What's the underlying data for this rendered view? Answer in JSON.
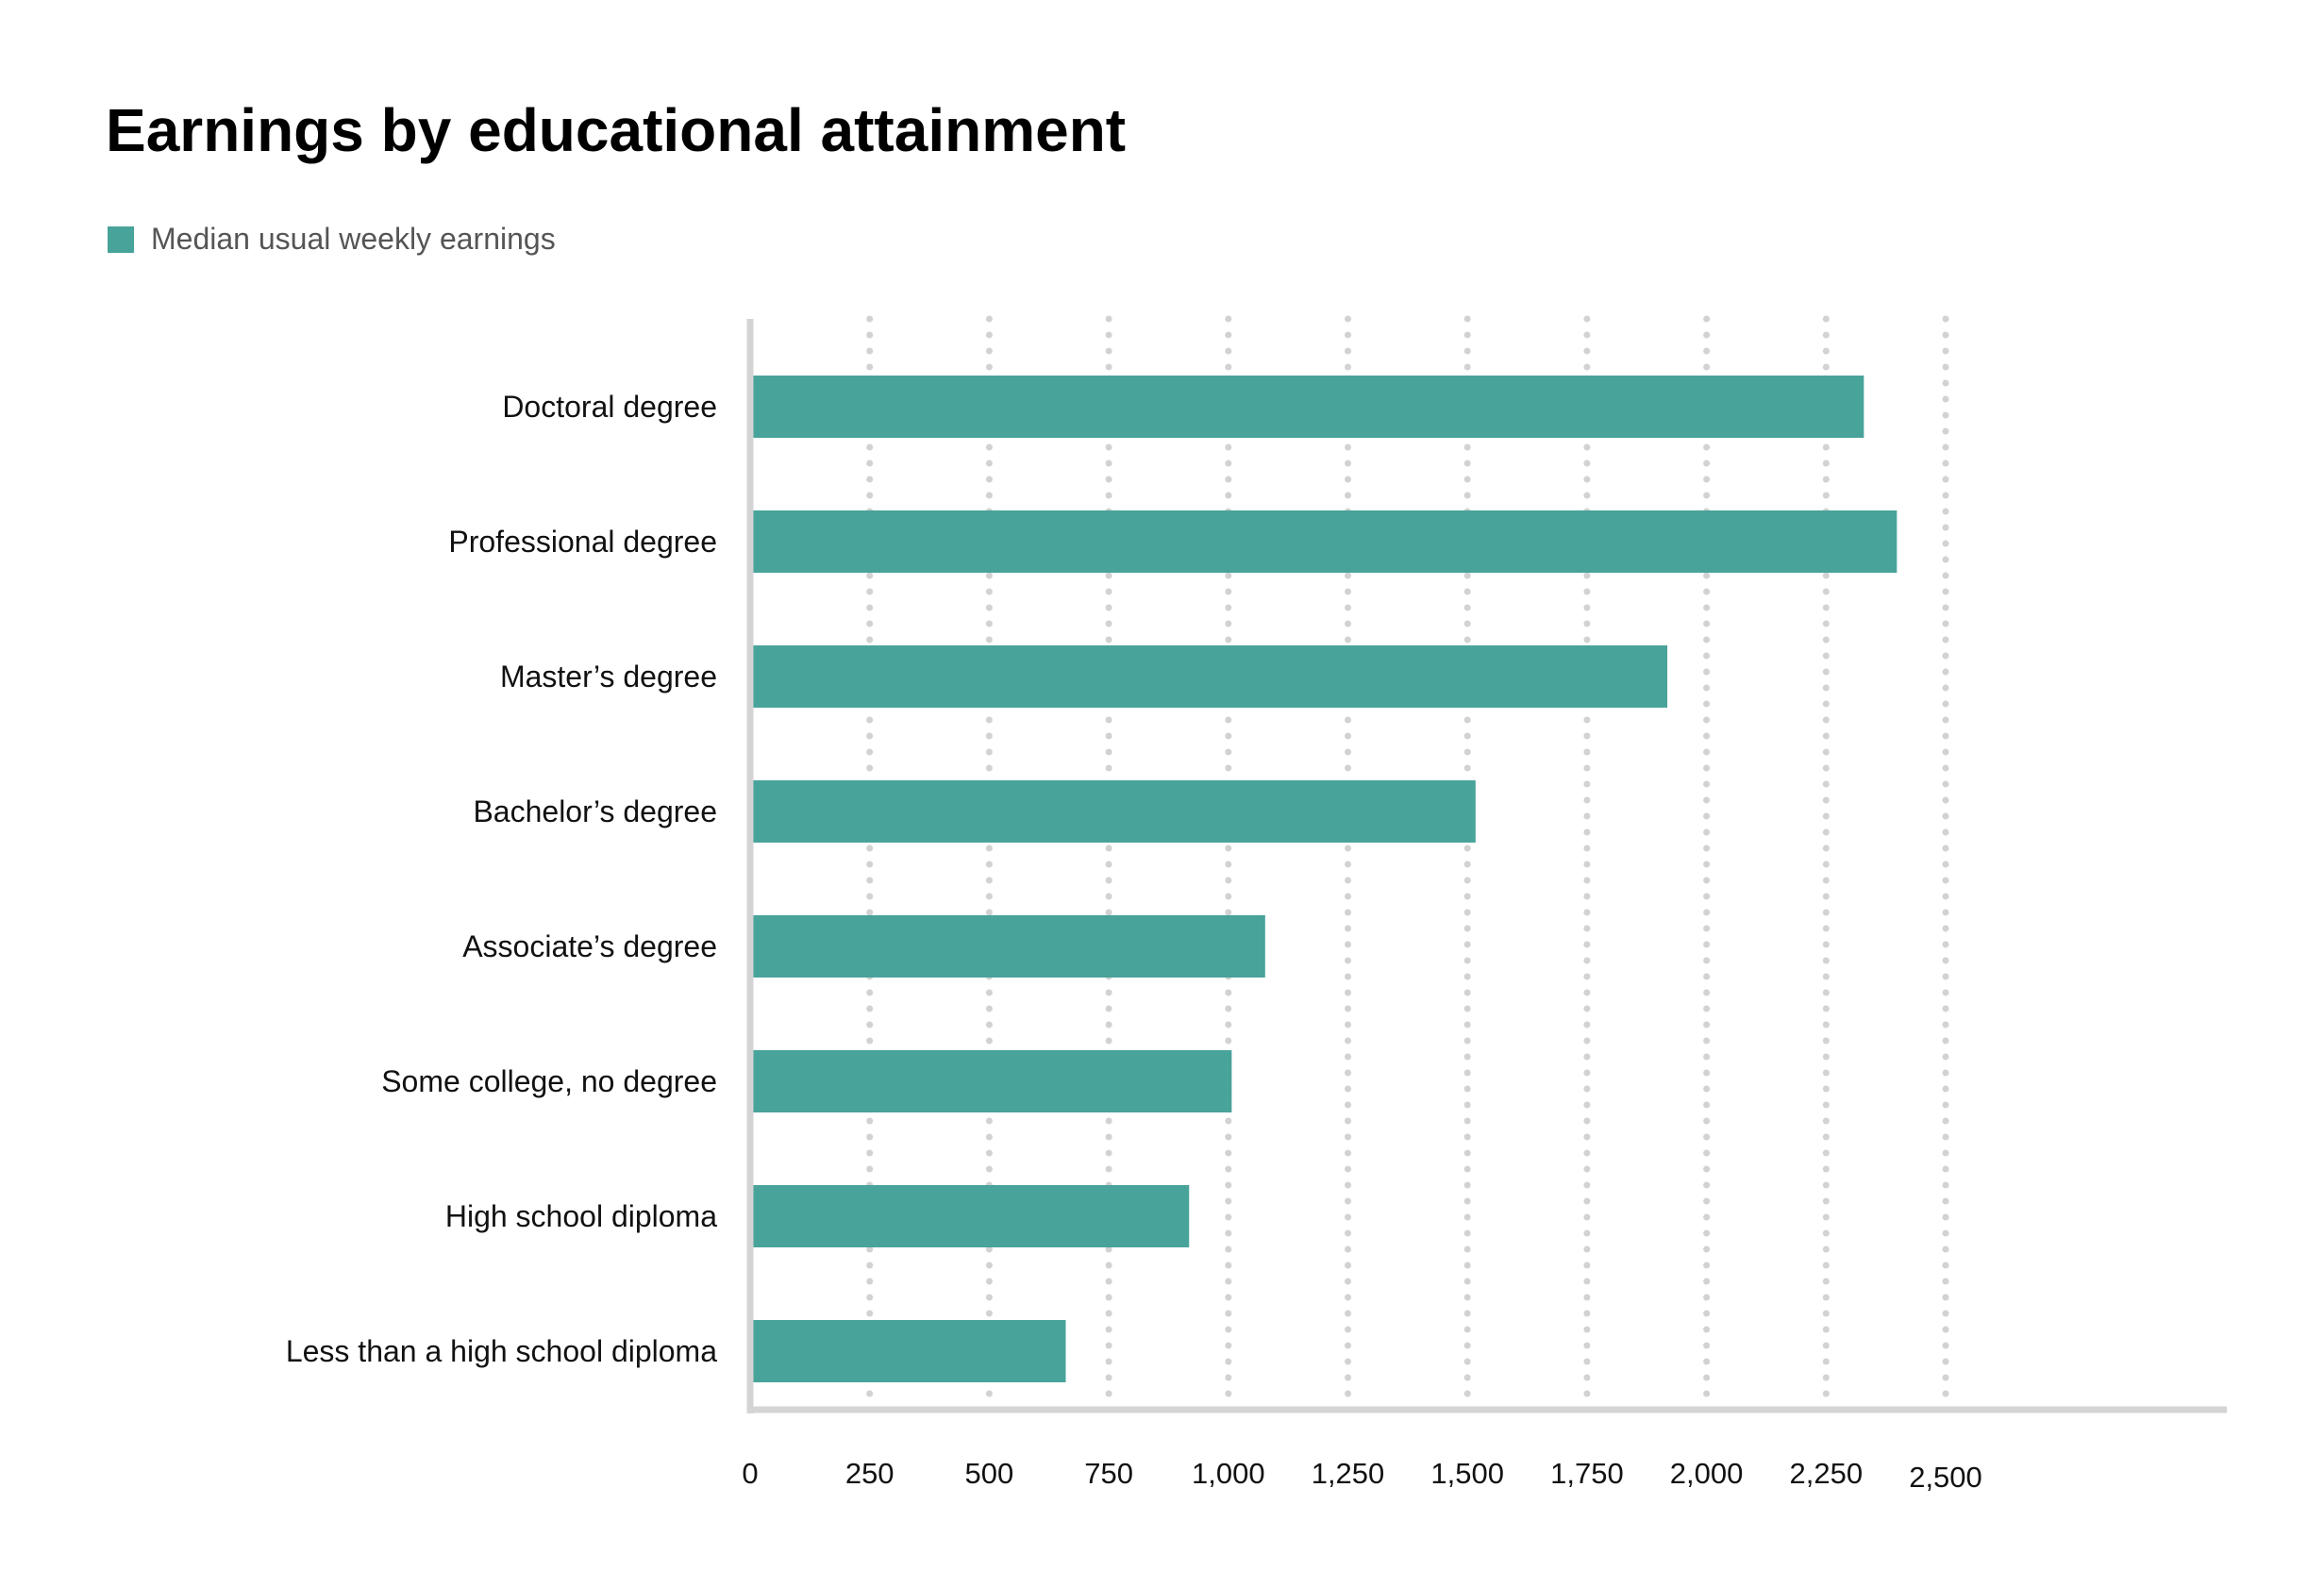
{
  "chart_data": {
    "type": "bar",
    "orientation": "horizontal",
    "title": "Earnings by educational attainment",
    "categories": [
      "Doctoral degree",
      "Professional degree",
      "Master’s degree",
      "Bachelor’s degree",
      "Associate’s degree",
      "Some college, no degree",
      "High school diploma",
      "Less than a high school diploma"
    ],
    "series": [
      {
        "name": "Median usual weekly earnings",
        "color": "#48a39a",
        "values": [
          2329,
          2398,
          1918,
          1517,
          1077,
          1007,
          918,
          660
        ]
      }
    ],
    "xlim": [
      0,
      2500
    ],
    "xticks": [
      0,
      250,
      500,
      750,
      1000,
      1250,
      1500,
      1750,
      2000,
      2250,
      2500
    ],
    "xtick_labels": [
      "0",
      "250",
      "500",
      "750",
      "1,000",
      "1,250",
      "1,500",
      "1,750",
      "2,000",
      "2,250",
      "2,500"
    ],
    "xlabel": "",
    "ylabel": "",
    "grid": "vertical dotted",
    "legend": "top-left"
  }
}
